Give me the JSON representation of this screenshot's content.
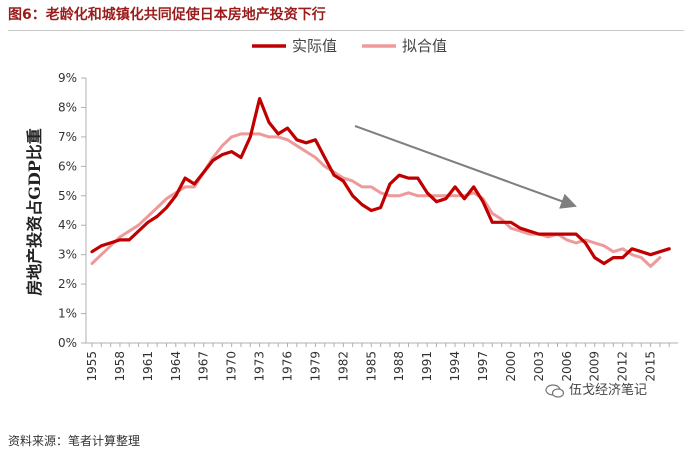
{
  "figure": {
    "title": "图6：老龄化和城镇化共同促使日本房地产投资下行",
    "source": "资料来源：笔者计算整理",
    "watermark_text": "伍戈经济笔记"
  },
  "chart_data": {
    "type": "line",
    "title": "",
    "xlabel": "",
    "ylabel": "房地产投资占GDP比重",
    "ylim": [
      0,
      9
    ],
    "yticks": [
      "0%",
      "1%",
      "2%",
      "3%",
      "4%",
      "5%",
      "6%",
      "7%",
      "8%",
      "9%"
    ],
    "xlim": [
      1955,
      2017
    ],
    "xticks": [
      "1955",
      "1958",
      "1961",
      "1964",
      "1967",
      "1970",
      "1973",
      "1976",
      "1979",
      "1982",
      "1985",
      "1988",
      "1991",
      "1994",
      "1997",
      "2000",
      "2003",
      "2006",
      "2009",
      "2012",
      "2015"
    ],
    "grid": false,
    "legend_position": "top-center",
    "annotation": "arrow-downward-trend",
    "series": [
      {
        "name": "实际值",
        "color": "#c00000",
        "x": [
          1955,
          1956,
          1957,
          1958,
          1959,
          1960,
          1961,
          1962,
          1963,
          1964,
          1965,
          1966,
          1967,
          1968,
          1969,
          1970,
          1971,
          1972,
          1973,
          1974,
          1975,
          1976,
          1977,
          1978,
          1979,
          1980,
          1981,
          1982,
          1983,
          1984,
          1985,
          1986,
          1987,
          1988,
          1989,
          1990,
          1991,
          1992,
          1993,
          1994,
          1995,
          1996,
          1997,
          1998,
          1999,
          2000,
          2001,
          2002,
          2003,
          2004,
          2005,
          2006,
          2007,
          2008,
          2009,
          2010,
          2011,
          2012,
          2013,
          2014,
          2015,
          2016,
          2017
        ],
        "values": [
          3.1,
          3.3,
          3.4,
          3.5,
          3.5,
          3.8,
          4.1,
          4.3,
          4.6,
          5.0,
          5.6,
          5.4,
          5.8,
          6.2,
          6.4,
          6.5,
          6.3,
          7.0,
          8.3,
          7.5,
          7.1,
          7.3,
          6.9,
          6.8,
          6.9,
          6.3,
          5.7,
          5.5,
          5.0,
          4.7,
          4.5,
          4.6,
          5.4,
          5.7,
          5.6,
          5.6,
          5.1,
          4.8,
          4.9,
          5.3,
          4.9,
          5.3,
          4.8,
          4.1,
          4.1,
          4.1,
          3.9,
          3.8,
          3.7,
          3.7,
          3.7,
          3.7,
          3.7,
          3.4,
          2.9,
          2.7,
          2.9,
          2.9,
          3.2,
          3.1,
          3.0,
          3.1,
          3.2
        ]
      },
      {
        "name": "拟合值",
        "color": "#ee9a9a",
        "x": [
          1955,
          1956,
          1957,
          1958,
          1959,
          1960,
          1961,
          1962,
          1963,
          1964,
          1965,
          1966,
          1967,
          1968,
          1969,
          1970,
          1971,
          1972,
          1973,
          1974,
          1975,
          1976,
          1977,
          1978,
          1979,
          1980,
          1981,
          1982,
          1983,
          1984,
          1985,
          1986,
          1987,
          1988,
          1989,
          1990,
          1991,
          1992,
          1993,
          1994,
          1995,
          1996,
          1997,
          1998,
          1999,
          2000,
          2001,
          2002,
          2003,
          2004,
          2005,
          2006,
          2007,
          2008,
          2009,
          2010,
          2011,
          2012,
          2013,
          2014,
          2015,
          2016
        ],
        "values": [
          2.7,
          3.0,
          3.3,
          3.6,
          3.8,
          4.0,
          4.3,
          4.6,
          4.9,
          5.1,
          5.3,
          5.3,
          5.8,
          6.3,
          6.7,
          7.0,
          7.1,
          7.1,
          7.1,
          7.0,
          7.0,
          6.9,
          6.7,
          6.5,
          6.3,
          6.0,
          5.8,
          5.6,
          5.5,
          5.3,
          5.3,
          5.1,
          5.0,
          5.0,
          5.1,
          5.0,
          5.0,
          5.0,
          5.0,
          5.0,
          5.0,
          5.1,
          4.9,
          4.4,
          4.2,
          3.9,
          3.8,
          3.7,
          3.7,
          3.6,
          3.7,
          3.5,
          3.4,
          3.5,
          3.4,
          3.3,
          3.1,
          3.2,
          3.0,
          2.9,
          2.6,
          2.9
        ]
      }
    ]
  }
}
